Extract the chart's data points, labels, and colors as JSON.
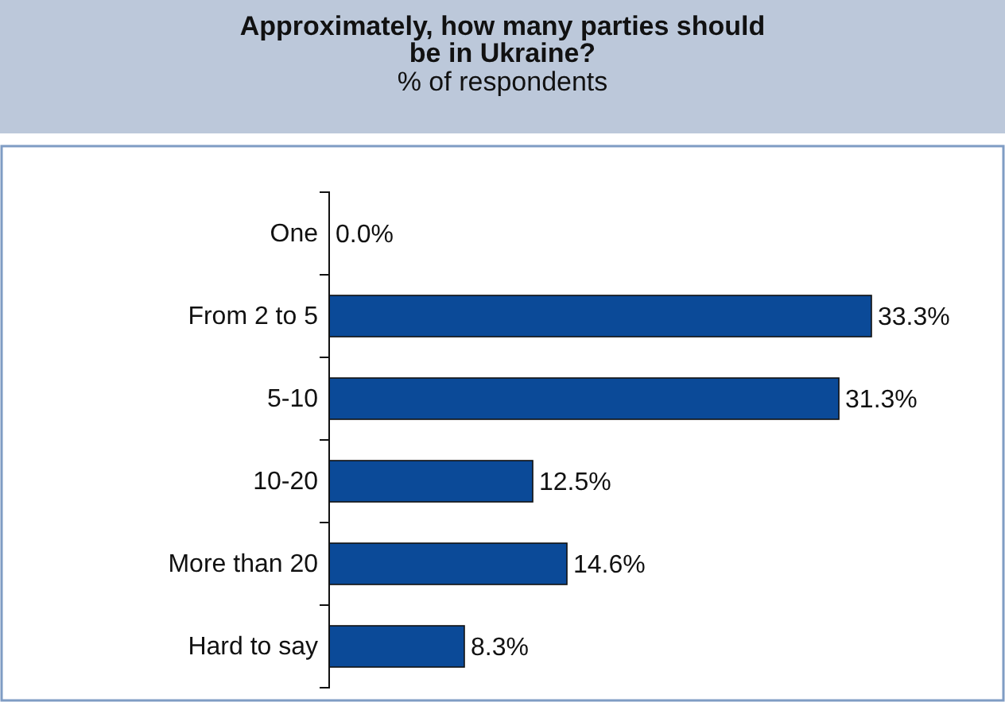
{
  "chart_data": {
    "type": "bar",
    "orientation": "horizontal",
    "title": "Approximately, how many parties should be in Ukraine?",
    "subtitle": "% of respondents",
    "categories": [
      "One",
      "From 2 to 5",
      "5-10",
      "10-20",
      "More than 20",
      "Hard to say"
    ],
    "values": [
      0,
      33.3,
      31.3,
      12.5,
      14.6,
      8.3
    ],
    "value_labels": [
      "0.0%",
      "33.3%",
      "31.3%",
      "12.5%",
      "14.6%",
      "8.3%"
    ],
    "color": "#0b4a98"
  }
}
